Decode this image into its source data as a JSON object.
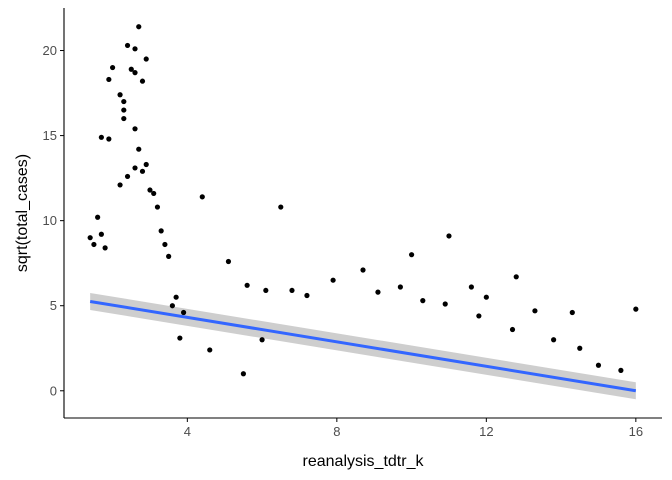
{
  "chart_data": {
    "type": "scatter",
    "title": "",
    "xlabel": "reanalysis_tdtr_k",
    "ylabel": "sqrt(total_cases)",
    "xlim": [
      0.7,
      16.7
    ],
    "ylim": [
      -1.6,
      22.5
    ],
    "x_ticks": [
      4,
      8,
      12,
      16
    ],
    "y_ticks": [
      0,
      5,
      10,
      15,
      20
    ],
    "x_tick_labels": [
      "4",
      "8",
      "12",
      "16"
    ],
    "y_tick_labels": [
      "0",
      "5",
      "10",
      "15",
      "20"
    ],
    "grid": false,
    "legend": "none",
    "colors": {
      "points": "#000000",
      "trend_line": "#3366FF",
      "confidence_band": "#bdbdbd",
      "axis": "#000000"
    },
    "series": [
      {
        "type": "scatter",
        "points": [
          [
            1.6,
            10.2
          ],
          [
            1.7,
            14.9
          ],
          [
            1.9,
            18.3
          ],
          [
            2.0,
            19.0
          ],
          [
            1.9,
            14.8
          ],
          [
            2.2,
            17.4
          ],
          [
            2.3,
            16.0
          ],
          [
            2.4,
            20.3
          ],
          [
            2.3,
            17.0
          ],
          [
            2.6,
            20.1
          ],
          [
            2.7,
            21.4
          ],
          [
            2.5,
            18.9
          ],
          [
            2.6,
            18.7
          ],
          [
            2.8,
            18.2
          ],
          [
            2.9,
            19.5
          ],
          [
            2.7,
            14.2
          ],
          [
            2.6,
            15.4
          ],
          [
            2.3,
            16.5
          ],
          [
            2.6,
            13.1
          ],
          [
            2.4,
            12.6
          ],
          [
            2.2,
            12.1
          ],
          [
            2.9,
            13.3
          ],
          [
            3.0,
            11.8
          ],
          [
            3.1,
            11.6
          ],
          [
            3.2,
            10.8
          ],
          [
            2.8,
            12.9
          ],
          [
            1.4,
            9.0
          ],
          [
            1.5,
            8.6
          ],
          [
            1.7,
            9.2
          ],
          [
            1.8,
            8.4
          ],
          [
            3.3,
            9.4
          ],
          [
            3.4,
            8.6
          ],
          [
            3.5,
            7.9
          ],
          [
            3.6,
            5.0
          ],
          [
            3.7,
            5.5
          ],
          [
            3.9,
            4.6
          ],
          [
            3.8,
            3.1
          ],
          [
            4.4,
            11.4
          ],
          [
            6.5,
            10.8
          ],
          [
            11.0,
            9.1
          ],
          [
            10.0,
            8.0
          ],
          [
            12.8,
            6.7
          ],
          [
            16.0,
            4.8
          ],
          [
            5.1,
            7.6
          ],
          [
            5.6,
            6.2
          ],
          [
            6.1,
            5.9
          ],
          [
            6.8,
            5.9
          ],
          [
            7.2,
            5.6
          ],
          [
            7.9,
            6.5
          ],
          [
            8.7,
            7.1
          ],
          [
            9.1,
            5.8
          ],
          [
            9.7,
            6.1
          ],
          [
            10.3,
            5.3
          ],
          [
            10.9,
            5.1
          ],
          [
            11.6,
            6.1
          ],
          [
            12.0,
            5.5
          ],
          [
            13.3,
            4.7
          ],
          [
            14.3,
            4.6
          ],
          [
            14.5,
            2.5
          ],
          [
            15.0,
            1.5
          ],
          [
            15.6,
            1.2
          ],
          [
            13.8,
            3.0
          ],
          [
            12.7,
            3.6
          ],
          [
            11.8,
            4.4
          ],
          [
            6.0,
            3.0
          ],
          [
            5.5,
            1.0
          ],
          [
            4.6,
            2.4
          ]
        ]
      },
      {
        "type": "line",
        "name": "",
        "x": [
          1.4,
          16.0
        ],
        "y": [
          5.25,
          0.0
        ],
        "band_upper": [
          5.75,
          0.5
        ],
        "band_lower": [
          4.75,
          -0.5
        ]
      }
    ]
  }
}
